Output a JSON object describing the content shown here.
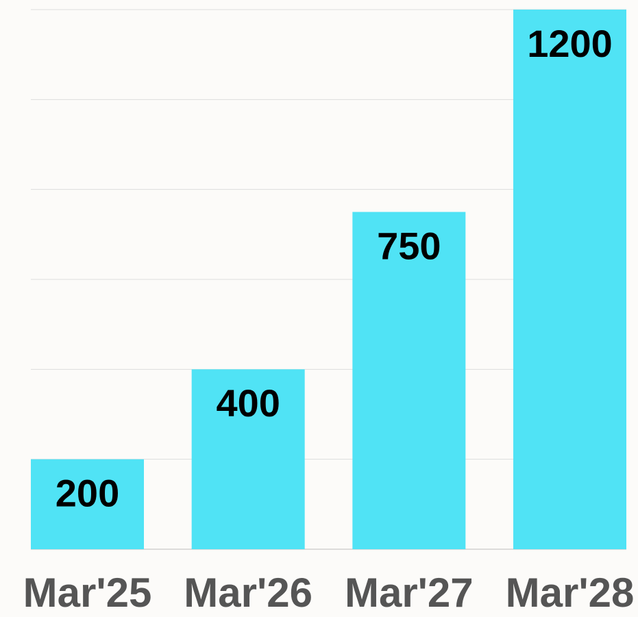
{
  "chart_data": {
    "type": "bar",
    "categories": [
      "Mar'25",
      "Mar'26",
      "Mar'27",
      "Mar'28"
    ],
    "values": [
      200,
      400,
      750,
      1200
    ],
    "color": "#50e3f5",
    "ylim": [
      0,
      1200
    ],
    "yticks": [
      0,
      200,
      400,
      600,
      800,
      1000,
      1200
    ],
    "grid": true
  }
}
